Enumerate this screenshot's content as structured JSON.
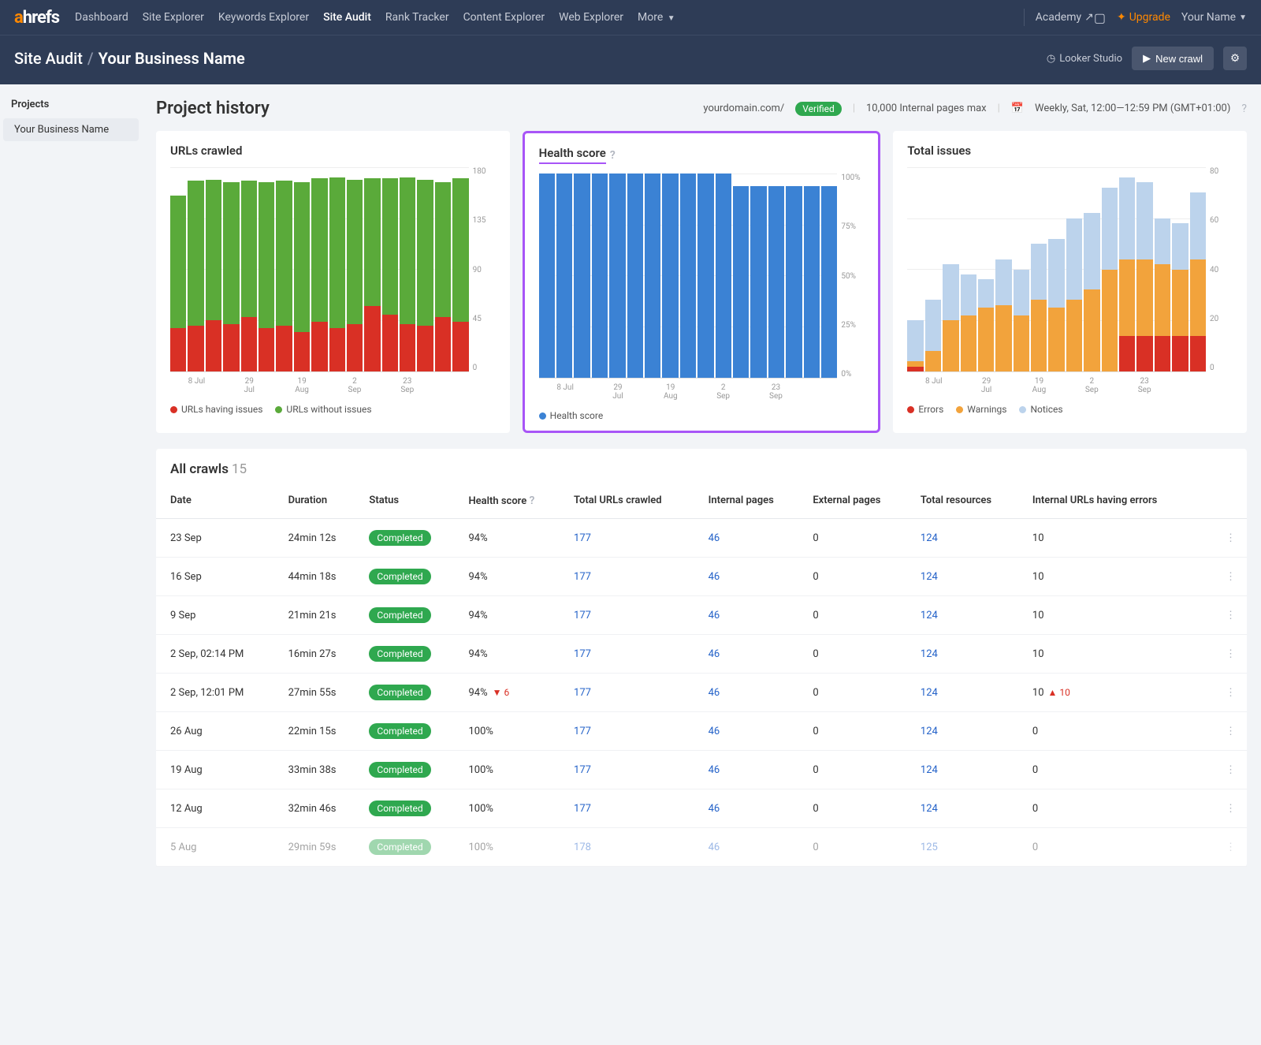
{
  "brand": {
    "a": "a",
    "rest": "hrefs"
  },
  "nav": {
    "items": [
      "Dashboard",
      "Site Explorer",
      "Keywords Explorer",
      "Site Audit",
      "Rank Tracker",
      "Content Explorer",
      "Web Explorer"
    ],
    "more": "More",
    "active_index": 3,
    "academy": "Academy",
    "upgrade": "Upgrade",
    "user": "Your Name"
  },
  "breadcrumb": {
    "section": "Site Audit",
    "current": "Your Business Name"
  },
  "subhead": {
    "looker": "Looker Studio",
    "newcrawl": "New crawl"
  },
  "sidebar": {
    "title": "Projects",
    "items": [
      "Your Business Name"
    ]
  },
  "page": {
    "title": "Project history",
    "domain": "yourdomain.com/",
    "verified": "Verified",
    "pages_max": "10,000 Internal pages max",
    "schedule": "Weekly, Sat, 12:00—12:59 PM (GMT+01:00)"
  },
  "charts": {
    "x_labels": [
      "8 Jul",
      "29 Jul",
      "19 Aug",
      "2 Sep",
      "23 Sep"
    ],
    "urls": {
      "title": "URLs crawled",
      "ymax": 180,
      "yticks": [
        "180",
        "135",
        "90",
        "45",
        "0"
      ],
      "colors": {
        "issues": "#d93025",
        "ok": "#5aaa3a"
      },
      "legend": [
        "URLs having issues",
        "URLs without issues"
      ],
      "bars": [
        [
          155,
          38
        ],
        [
          168,
          40
        ],
        [
          169,
          45
        ],
        [
          167,
          42
        ],
        [
          168,
          48
        ],
        [
          167,
          38
        ],
        [
          168,
          40
        ],
        [
          167,
          35
        ],
        [
          170,
          44
        ],
        [
          171,
          38
        ],
        [
          169,
          42
        ],
        [
          170,
          58
        ],
        [
          170,
          50
        ],
        [
          171,
          42
        ],
        [
          169,
          40
        ],
        [
          167,
          48
        ],
        [
          170,
          44
        ]
      ]
    },
    "health": {
      "title": "Health score",
      "ymax": 100,
      "yticks": [
        "100%",
        "75%",
        "50%",
        "25%",
        "0%"
      ],
      "color": "#3b82d4",
      "legend": [
        "Health score"
      ],
      "bars": [
        100,
        100,
        100,
        100,
        100,
        100,
        100,
        100,
        100,
        100,
        100,
        94,
        94,
        94,
        94,
        94,
        94
      ]
    },
    "issues": {
      "title": "Total issues",
      "ymax": 80,
      "yticks": [
        "80",
        "60",
        "40",
        "20",
        "0"
      ],
      "colors": {
        "errors": "#d93025",
        "warnings": "#f2a33c",
        "notices": "#bcd3ec"
      },
      "legend": [
        "Errors",
        "Warnings",
        "Notices"
      ],
      "bars": [
        [
          2,
          4,
          20
        ],
        [
          0,
          8,
          28
        ],
        [
          0,
          20,
          42
        ],
        [
          0,
          22,
          38
        ],
        [
          0,
          25,
          36
        ],
        [
          0,
          26,
          44
        ],
        [
          0,
          22,
          40
        ],
        [
          0,
          28,
          50
        ],
        [
          0,
          25,
          52
        ],
        [
          0,
          28,
          60
        ],
        [
          0,
          32,
          62
        ],
        [
          0,
          40,
          72
        ],
        [
          14,
          44,
          76
        ],
        [
          14,
          44,
          74
        ],
        [
          14,
          42,
          60
        ],
        [
          14,
          40,
          58
        ],
        [
          14,
          44,
          70
        ]
      ]
    }
  },
  "table": {
    "title": "All crawls",
    "count": "15",
    "columns": [
      "Date",
      "Duration",
      "Status",
      "Health score",
      "Total URLs crawled",
      "Internal pages",
      "External pages",
      "Total resources",
      "Internal URLs having errors",
      ""
    ],
    "rows": [
      {
        "date": "23 Sep",
        "dur": "24min 12s",
        "status": "Completed",
        "hs": "94%",
        "urls": "177",
        "int": "46",
        "ext": "0",
        "res": "124",
        "err": "10"
      },
      {
        "date": "16 Sep",
        "dur": "44min 18s",
        "status": "Completed",
        "hs": "94%",
        "urls": "177",
        "int": "46",
        "ext": "0",
        "res": "124",
        "err": "10"
      },
      {
        "date": "9 Sep",
        "dur": "21min 21s",
        "status": "Completed",
        "hs": "94%",
        "urls": "177",
        "int": "46",
        "ext": "0",
        "res": "124",
        "err": "10"
      },
      {
        "date": "2 Sep, 02:14 PM",
        "dur": "16min 27s",
        "status": "Completed",
        "hs": "94%",
        "urls": "177",
        "int": "46",
        "ext": "0",
        "res": "124",
        "err": "10"
      },
      {
        "date": "2 Sep, 12:01 PM",
        "dur": "27min 55s",
        "status": "Completed",
        "hs": "94%",
        "hs_delta": "6",
        "hs_dir": "down",
        "urls": "177",
        "int": "46",
        "ext": "0",
        "res": "124",
        "err": "10",
        "err_delta": "10",
        "err_dir": "up"
      },
      {
        "date": "26 Aug",
        "dur": "22min 15s",
        "status": "Completed",
        "hs": "100%",
        "urls": "177",
        "int": "46",
        "ext": "0",
        "res": "124",
        "err": "0"
      },
      {
        "date": "19 Aug",
        "dur": "33min 38s",
        "status": "Completed",
        "hs": "100%",
        "urls": "177",
        "int": "46",
        "ext": "0",
        "res": "124",
        "err": "0"
      },
      {
        "date": "12 Aug",
        "dur": "32min 46s",
        "status": "Completed",
        "hs": "100%",
        "urls": "177",
        "int": "46",
        "ext": "0",
        "res": "124",
        "err": "0"
      },
      {
        "date": "5 Aug",
        "dur": "29min 59s",
        "status": "Completed",
        "hs": "100%",
        "urls": "178",
        "int": "46",
        "ext": "0",
        "res": "125",
        "err": "0",
        "fade": true
      }
    ]
  }
}
